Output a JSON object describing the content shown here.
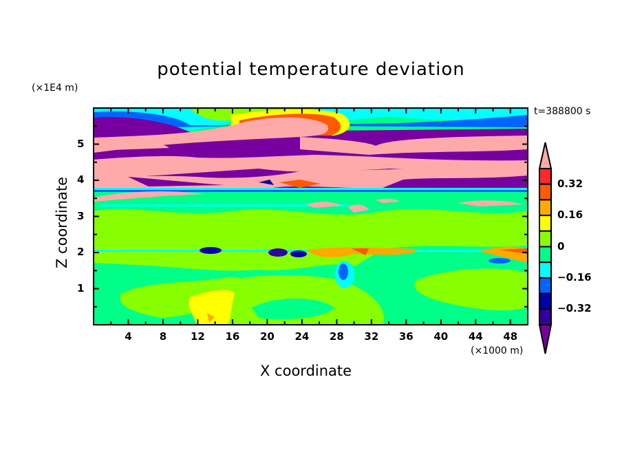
{
  "chart_data": {
    "type": "heatmap",
    "subtype": "filled-contour",
    "title": "potential temperature deviation",
    "xlabel": "X coordinate",
    "ylabel": "Z coordinate",
    "x_unit": "(×1000 m)",
    "y_unit": "(×1E4 m)",
    "time_label": "t=388800 s",
    "xlim": [
      0,
      50
    ],
    "ylim": [
      0,
      6
    ],
    "x_ticks": [
      "4",
      "8",
      "12",
      "16",
      "20",
      "24",
      "28",
      "32",
      "36",
      "40",
      "44",
      "48"
    ],
    "x_tick_values": [
      4,
      8,
      12,
      16,
      20,
      24,
      28,
      32,
      36,
      40,
      44,
      48
    ],
    "y_ticks": [
      "1",
      "2",
      "3",
      "4",
      "5"
    ],
    "y_tick_values": [
      1,
      2,
      3,
      4,
      5
    ],
    "colorbar": {
      "levels": [
        -0.4,
        -0.32,
        -0.24,
        -0.16,
        -0.08,
        0,
        0.08,
        0.16,
        0.24,
        0.32,
        0.4
      ],
      "labels": [
        "0.32",
        "0.16",
        "0",
        "−0.16",
        "−0.32"
      ],
      "label_values": [
        0.32,
        0.16,
        0,
        -0.16,
        -0.32
      ],
      "colors_high_to_low": [
        "#ff2828",
        "#ff5a00",
        "#ffaa00",
        "#ffff00",
        "#88ff00",
        "#00ff88",
        "#00ffff",
        "#0064ff",
        "#0000aa",
        "#3200a0"
      ],
      "over_color": "#ffaaaa",
      "under_color": "#7800a0",
      "extend": "both"
    }
  }
}
